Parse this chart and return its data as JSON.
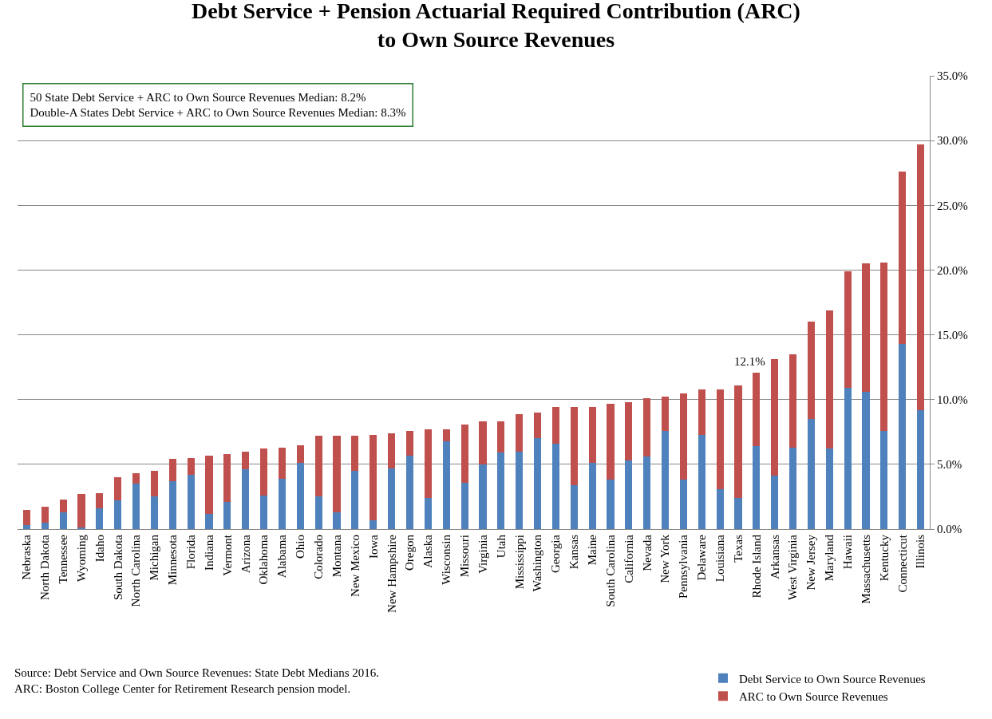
{
  "chart_data": {
    "type": "bar",
    "stacked": true,
    "title": "Debt Service + Pension Actuarial Required Contribution (ARC)\nto Own Source Revenues",
    "categories": [
      "Nebraska",
      "North Dakota",
      "Tennessee",
      "Wyoming",
      "Idaho",
      "South Dakota",
      "North Carolina",
      "Michigan",
      "Minnesota",
      "Florida",
      "Indiana",
      "Vermont",
      "Arizona",
      "Oklahoma",
      "Alabama",
      "Ohio",
      "Colorado",
      "Montana",
      "New Mexico",
      "Iowa",
      "New Hampshire",
      "Oregon",
      "Alaska",
      "Wisconsin",
      "Missouri",
      "Virginia",
      "Utah",
      "Mississippi",
      "Washington",
      "Georgia",
      "Kansas",
      "Maine",
      "South Carolina",
      "California",
      "Nevada",
      "New York",
      "Pennsylvania",
      "Delaware",
      "Louisiana",
      "Texas",
      "Rhode Island",
      "Arkansas",
      "West Virginia",
      "New Jersey",
      "Maryland",
      "Hawaii",
      "Massachusetts",
      "Kentucky",
      "Connecticut",
      "Illinois"
    ],
    "series": [
      {
        "name": "Debt Service to Own Source Revenues",
        "color": "#4f81bd",
        "values": [
          0.3,
          0.5,
          1.3,
          0.1,
          1.6,
          2.2,
          3.5,
          2.5,
          3.7,
          4.2,
          1.2,
          2.1,
          4.6,
          2.6,
          3.9,
          5.1,
          2.5,
          1.3,
          4.5,
          0.7,
          4.7,
          5.7,
          2.4,
          6.8,
          3.6,
          5.0,
          5.9,
          6.0,
          7.0,
          6.6,
          3.4,
          5.1,
          3.8,
          5.3,
          5.6,
          7.6,
          3.8,
          7.3,
          3.1,
          2.4,
          6.4,
          4.1,
          6.3,
          8.5,
          6.2,
          10.9,
          10.6,
          7.6,
          14.3,
          9.2
        ]
      },
      {
        "name": "ARC to Own Source Revenues",
        "color": "#c0504d",
        "values": [
          1.2,
          1.2,
          1.0,
          2.6,
          1.2,
          1.8,
          0.8,
          2.0,
          1.7,
          1.3,
          4.5,
          3.7,
          1.4,
          3.6,
          2.4,
          1.4,
          4.7,
          5.9,
          2.7,
          6.6,
          2.7,
          1.9,
          5.3,
          0.9,
          4.5,
          3.3,
          2.4,
          2.9,
          2.0,
          2.8,
          6.0,
          4.3,
          5.9,
          4.5,
          4.5,
          2.6,
          6.7,
          3.5,
          7.7,
          8.7,
          5.7,
          9.0,
          7.2,
          7.5,
          10.7,
          9.0,
          9.9,
          13.0,
          13.3,
          20.5
        ]
      }
    ],
    "ylim": [
      0,
      35
    ],
    "yticks": [
      {
        "value": 0,
        "label": "0.0%"
      },
      {
        "value": 5,
        "label": "5.0%"
      },
      {
        "value": 10,
        "label": "10.0%"
      },
      {
        "value": 15,
        "label": "15.0%"
      },
      {
        "value": 20,
        "label": "20.0%"
      },
      {
        "value": 25,
        "label": "25.0%"
      },
      {
        "value": 30,
        "label": "30.0%"
      },
      {
        "value": 35,
        "label": "35.0%"
      }
    ],
    "grid": "y",
    "legend": "bottom right",
    "annotations": [
      {
        "text": "12.1%",
        "x": "Rhode Island",
        "y": 12.1
      },
      "50 State Debt Service + ARC to Own Source Revenues Median: 8.2%\nDouble-A States Debt Service + ARC to Own Source Revenues Median: 8.3%",
      "Source: Debt Service and Own Source Revenues: State Debt Medians 2016.\nARC: Boston College Center for Retirement Research pension model."
    ]
  }
}
